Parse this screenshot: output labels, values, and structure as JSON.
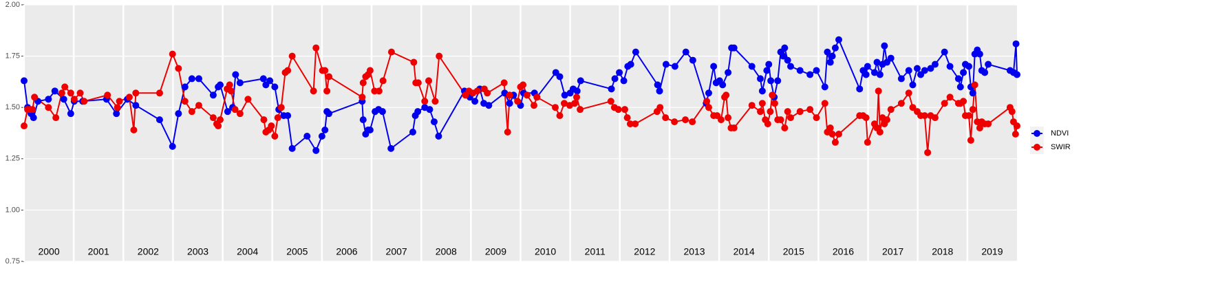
{
  "chart_data": {
    "type": "line",
    "xlim": [
      2000,
      2020
    ],
    "xticks": [
      {
        "value": 2000,
        "label": "2000"
      },
      {
        "value": 2001,
        "label": "2001"
      },
      {
        "value": 2002,
        "label": "2002"
      },
      {
        "value": 2003,
        "label": "2003"
      },
      {
        "value": 2004,
        "label": "2004"
      },
      {
        "value": 2005,
        "label": "2005"
      },
      {
        "value": 2006,
        "label": "2006"
      },
      {
        "value": 2007,
        "label": "2007"
      },
      {
        "value": 2008,
        "label": "2008"
      },
      {
        "value": 2009,
        "label": "2009"
      },
      {
        "value": 2010,
        "label": "2010"
      },
      {
        "value": 2011,
        "label": "2011"
      },
      {
        "value": 2012,
        "label": "2012"
      },
      {
        "value": 2013,
        "label": "2013"
      },
      {
        "value": 2014,
        "label": "2014"
      },
      {
        "value": 2015,
        "label": "2015"
      },
      {
        "value": 2016,
        "label": "2016"
      },
      {
        "value": 2017,
        "label": "2017"
      },
      {
        "value": 2018,
        "label": "2018"
      },
      {
        "value": 2019,
        "label": "2019"
      }
    ],
    "ylim": [
      0.75,
      2.0
    ],
    "yticks": [
      {
        "value": 0.75,
        "label": "0.75"
      },
      {
        "value": 1.0,
        "label": "1.00"
      },
      {
        "value": 1.25,
        "label": "1.25"
      },
      {
        "value": 1.5,
        "label": "1.50"
      },
      {
        "value": 1.75,
        "label": "1.75"
      },
      {
        "value": 2.0,
        "label": "2.00"
      }
    ],
    "grid": true,
    "legend": "right",
    "series": [
      {
        "name": "NDVI",
        "color": "#0000ee",
        "x": [
          2000.0,
          2000.07,
          2000.14,
          2000.19,
          2000.28,
          2000.49,
          2000.62,
          2000.8,
          2000.94,
          2001.01,
          2001.18,
          2001.66,
          2001.86,
          2002.08,
          2002.25,
          2002.73,
          2002.99,
          2003.11,
          2003.24,
          2003.38,
          2003.52,
          2003.81,
          2003.91,
          2003.95,
          2004.1,
          2004.2,
          2004.26,
          2004.35,
          2004.82,
          2004.87,
          2004.95,
          2005.05,
          2005.13,
          2005.23,
          2005.31,
          2005.4,
          2005.7,
          2005.88,
          2006.0,
          2006.06,
          2006.1,
          2006.14,
          2006.81,
          2006.83,
          2006.88,
          2006.93,
          2006.97,
          2007.07,
          2007.14,
          2007.22,
          2007.39,
          2007.83,
          2007.88,
          2007.93,
          2008.07,
          2008.17,
          2008.26,
          2008.35,
          2008.87,
          2008.98,
          2009.08,
          2009.18,
          2009.26,
          2009.36,
          2009.68,
          2009.78,
          2009.86,
          2010.0,
          2010.06,
          2010.28,
          2010.33,
          2010.71,
          2010.79,
          2010.89,
          2011.0,
          2011.06,
          2011.14,
          2011.21,
          2011.83,
          2011.9,
          2011.99,
          2012.08,
          2012.16,
          2012.22,
          2012.32,
          2012.76,
          2012.8,
          2012.93,
          2013.11,
          2013.33,
          2013.47,
          2013.74,
          2013.79,
          2013.89,
          2013.94,
          2014.01,
          2014.07,
          2014.18,
          2014.25,
          2014.3,
          2014.66,
          2014.83,
          2014.87,
          2014.96,
          2015.0,
          2015.04,
          2015.11,
          2015.18,
          2015.24,
          2015.29,
          2015.32,
          2015.38,
          2015.44,
          2015.63,
          2015.83,
          2015.96,
          2016.13,
          2016.18,
          2016.24,
          2016.28,
          2016.34,
          2016.41,
          2016.83,
          2016.9,
          2016.96,
          2016.99,
          2017.13,
          2017.18,
          2017.24,
          2017.29,
          2017.33,
          2017.38,
          2017.46,
          2017.67,
          2017.82,
          2017.9,
          2017.99,
          2018.06,
          2018.14,
          2018.26,
          2018.35,
          2018.54,
          2018.65,
          2018.82,
          2018.86,
          2018.92,
          2018.96,
          2019.03,
          2019.07,
          2019.11,
          2019.15,
          2019.2,
          2019.25,
          2019.29,
          2019.35,
          2019.42,
          2019.86,
          2019.93,
          2019.98,
          2020.0
        ],
        "values": [
          1.63,
          1.5,
          1.47,
          1.45,
          1.53,
          1.54,
          1.58,
          1.54,
          1.47,
          1.53,
          1.53,
          1.54,
          1.47,
          1.54,
          1.51,
          1.44,
          1.31,
          1.47,
          1.6,
          1.64,
          1.64,
          1.56,
          1.6,
          1.61,
          1.48,
          1.5,
          1.66,
          1.62,
          1.64,
          1.61,
          1.63,
          1.6,
          1.49,
          1.46,
          1.46,
          1.3,
          1.36,
          1.29,
          1.36,
          1.39,
          1.48,
          1.47,
          1.53,
          1.44,
          1.37,
          1.39,
          1.39,
          1.48,
          1.49,
          1.48,
          1.3,
          1.38,
          1.46,
          1.48,
          1.5,
          1.49,
          1.43,
          1.36,
          1.58,
          1.55,
          1.53,
          1.59,
          1.52,
          1.51,
          1.57,
          1.52,
          1.56,
          1.51,
          1.57,
          1.57,
          1.55,
          1.67,
          1.65,
          1.56,
          1.57,
          1.59,
          1.58,
          1.63,
          1.59,
          1.64,
          1.67,
          1.63,
          1.7,
          1.71,
          1.77,
          1.61,
          1.58,
          1.71,
          1.7,
          1.77,
          1.73,
          1.52,
          1.57,
          1.7,
          1.62,
          1.63,
          1.61,
          1.67,
          1.79,
          1.79,
          1.7,
          1.64,
          1.58,
          1.68,
          1.71,
          1.63,
          1.55,
          1.63,
          1.77,
          1.75,
          1.79,
          1.73,
          1.7,
          1.68,
          1.66,
          1.68,
          1.6,
          1.77,
          1.72,
          1.75,
          1.79,
          1.83,
          1.59,
          1.68,
          1.66,
          1.7,
          1.67,
          1.72,
          1.66,
          1.71,
          1.8,
          1.72,
          1.74,
          1.64,
          1.68,
          1.61,
          1.69,
          1.66,
          1.68,
          1.69,
          1.71,
          1.77,
          1.7,
          1.64,
          1.6,
          1.67,
          1.71,
          1.7,
          1.6,
          1.57,
          1.76,
          1.78,
          1.76,
          1.68,
          1.67,
          1.71,
          1.68,
          1.67,
          1.81,
          1.66
        ]
      },
      {
        "name": "SWIR",
        "color": "#ee0000",
        "x": [
          2000.0,
          2000.07,
          2000.12,
          2000.17,
          2000.21,
          2000.49,
          2000.64,
          2000.76,
          2000.82,
          2000.94,
          2001.01,
          2001.13,
          2001.21,
          2001.68,
          2001.88,
          2001.92,
          2002.12,
          2002.21,
          2002.25,
          2002.73,
          2002.99,
          2003.11,
          2003.24,
          2003.38,
          2003.52,
          2003.81,
          2003.88,
          2003.91,
          2003.95,
          2004.09,
          2004.14,
          2004.17,
          2004.25,
          2004.35,
          2004.51,
          2004.83,
          2004.87,
          2004.93,
          2004.98,
          2005.05,
          2005.11,
          2005.18,
          2005.26,
          2005.31,
          2005.4,
          2005.83,
          2005.88,
          2006.01,
          2006.06,
          2006.1,
          2006.14,
          2006.81,
          2006.83,
          2006.88,
          2006.93,
          2006.97,
          2007.06,
          2007.15,
          2007.23,
          2007.4,
          2007.85,
          2007.89,
          2007.94,
          2008.07,
          2008.15,
          2008.28,
          2008.36,
          2008.89,
          2008.96,
          2009.04,
          2009.13,
          2009.27,
          2009.33,
          2009.67,
          2009.74,
          2009.78,
          2009.94,
          2010.0,
          2010.05,
          2010.13,
          2010.27,
          2010.33,
          2010.7,
          2010.79,
          2010.88,
          2010.99,
          2011.09,
          2011.13,
          2011.2,
          2011.82,
          2011.89,
          2011.97,
          2012.1,
          2012.15,
          2012.21,
          2012.31,
          2012.75,
          2012.81,
          2012.92,
          2013.1,
          2013.32,
          2013.46,
          2013.75,
          2013.79,
          2013.89,
          2013.96,
          2014.04,
          2014.11,
          2014.14,
          2014.18,
          2014.24,
          2014.3,
          2014.66,
          2014.83,
          2014.87,
          2014.93,
          2014.98,
          2015.03,
          2015.07,
          2015.12,
          2015.18,
          2015.24,
          2015.32,
          2015.38,
          2015.44,
          2015.63,
          2015.83,
          2015.96,
          2016.13,
          2016.18,
          2016.24,
          2016.28,
          2016.34,
          2016.41,
          2016.83,
          2016.9,
          2016.96,
          2016.99,
          2017.13,
          2017.18,
          2017.21,
          2017.24,
          2017.29,
          2017.33,
          2017.38,
          2017.46,
          2017.67,
          2017.82,
          2017.9,
          2017.99,
          2018.06,
          2018.14,
          2018.2,
          2018.26,
          2018.35,
          2018.54,
          2018.65,
          2018.82,
          2018.86,
          2018.92,
          2018.96,
          2019.03,
          2019.07,
          2019.11,
          2019.15,
          2019.2,
          2019.25,
          2019.29,
          2019.35,
          2019.42,
          2019.86,
          2019.9,
          2019.93,
          2019.97,
          2020.0
        ],
        "values": [
          1.41,
          1.49,
          1.49,
          1.49,
          1.55,
          1.5,
          1.45,
          1.57,
          1.6,
          1.57,
          1.54,
          1.57,
          1.53,
          1.56,
          1.5,
          1.53,
          1.55,
          1.39,
          1.57,
          1.57,
          1.76,
          1.69,
          1.53,
          1.48,
          1.51,
          1.45,
          1.42,
          1.41,
          1.44,
          1.59,
          1.61,
          1.58,
          1.49,
          1.47,
          1.54,
          1.44,
          1.38,
          1.39,
          1.41,
          1.36,
          1.45,
          1.5,
          1.67,
          1.68,
          1.75,
          1.58,
          1.79,
          1.68,
          1.68,
          1.58,
          1.65,
          1.55,
          1.62,
          1.65,
          1.66,
          1.68,
          1.58,
          1.58,
          1.63,
          1.77,
          1.72,
          1.62,
          1.62,
          1.53,
          1.63,
          1.53,
          1.75,
          1.56,
          1.58,
          1.57,
          1.58,
          1.59,
          1.57,
          1.62,
          1.38,
          1.56,
          1.53,
          1.6,
          1.61,
          1.56,
          1.51,
          1.55,
          1.5,
          1.46,
          1.52,
          1.51,
          1.52,
          1.55,
          1.49,
          1.53,
          1.5,
          1.49,
          1.49,
          1.45,
          1.42,
          1.42,
          1.48,
          1.5,
          1.45,
          1.43,
          1.44,
          1.43,
          1.53,
          1.5,
          1.46,
          1.46,
          1.44,
          1.55,
          1.56,
          1.45,
          1.4,
          1.4,
          1.51,
          1.48,
          1.52,
          1.44,
          1.42,
          1.48,
          1.56,
          1.52,
          1.44,
          1.44,
          1.4,
          1.48,
          1.45,
          1.48,
          1.49,
          1.45,
          1.52,
          1.38,
          1.4,
          1.37,
          1.33,
          1.37,
          1.46,
          1.46,
          1.45,
          1.33,
          1.42,
          1.4,
          1.58,
          1.38,
          1.45,
          1.42,
          1.44,
          1.49,
          1.52,
          1.57,
          1.5,
          1.48,
          1.46,
          1.46,
          1.28,
          1.46,
          1.45,
          1.52,
          1.55,
          1.52,
          1.52,
          1.53,
          1.46,
          1.46,
          1.34,
          1.49,
          1.61,
          1.43,
          1.4,
          1.43,
          1.42,
          1.42,
          1.5,
          1.48,
          1.43,
          1.37,
          1.41
        ]
      }
    ]
  }
}
